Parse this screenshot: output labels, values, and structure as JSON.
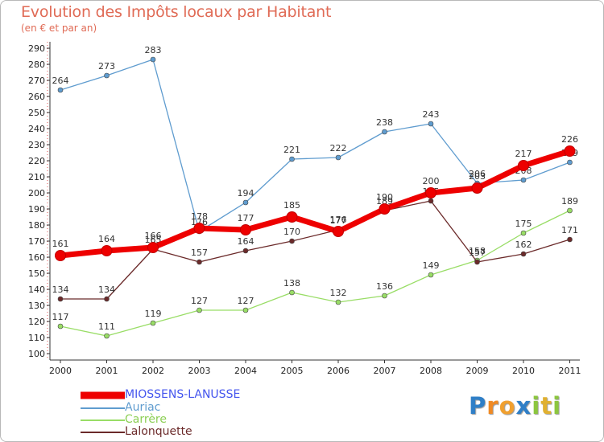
{
  "chart_data": {
    "type": "line",
    "title": "Evolution des Impôts locaux par Habitant",
    "subtitle": "(en € et par an)",
    "x": [
      "2000",
      "2001",
      "2002",
      "2003",
      "2004",
      "2005",
      "2006",
      "2007",
      "2008",
      "2009",
      "2010",
      "2011"
    ],
    "ylim": [
      100,
      290
    ],
    "yticks": [
      100,
      110,
      120,
      130,
      140,
      150,
      160,
      170,
      180,
      190,
      200,
      210,
      220,
      230,
      240,
      250,
      260,
      270,
      280,
      290
    ],
    "grid": false,
    "legend_position": "bottom-left",
    "series": [
      {
        "name": "MIOSSENS-LANUSSE",
        "color": "#ee0000",
        "values": [
          161,
          164,
          166,
          178,
          177,
          185,
          176,
          190,
          200,
          203,
          217,
          226
        ]
      },
      {
        "name": "Auriac",
        "color": "#5f9ccf",
        "values": [
          264,
          273,
          283,
          176,
          194,
          221,
          222,
          238,
          243,
          206,
          208,
          219
        ]
      },
      {
        "name": "Carrère",
        "color": "#99dd66",
        "values": [
          117,
          111,
          119,
          127,
          127,
          138,
          132,
          136,
          149,
          158,
          175,
          189
        ]
      },
      {
        "name": "Lalonquette",
        "color": "#6b2a2a",
        "values": [
          134,
          134,
          165,
          157,
          164,
          170,
          177,
          189,
          195,
          157,
          162,
          171
        ]
      }
    ]
  },
  "legend_colors": {
    "MIOSSENS-LANUSSE": "#4455ee",
    "Auriac": "#5f9ccf",
    "Carrère": "#8ccf55",
    "Lalonquette": "#6b2a2a"
  },
  "logo": {
    "text": "Proxiti",
    "letters": [
      {
        "ch": "P",
        "color": "#2f7fc7"
      },
      {
        "ch": "r",
        "color": "#f08a24"
      },
      {
        "ch": "o",
        "color": "#f0a030"
      },
      {
        "ch": "x",
        "color": "#2f7fc7"
      },
      {
        "ch": "i",
        "color": "#8cc63e"
      },
      {
        "ch": "t",
        "color": "#e0b030"
      },
      {
        "ch": "i",
        "color": "#8cc63e"
      }
    ]
  }
}
